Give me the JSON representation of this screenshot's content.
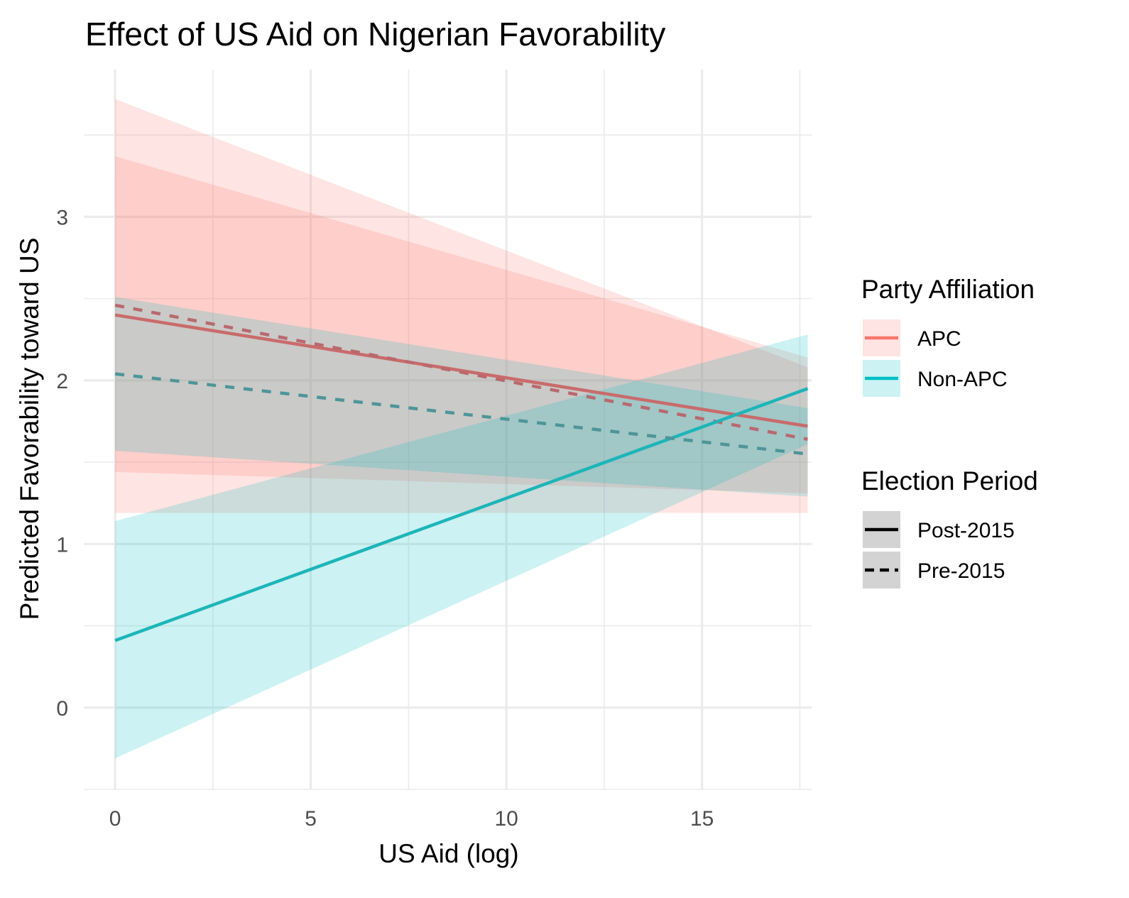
{
  "chart_data": {
    "type": "line",
    "title": "Effect of US Aid on Nigerian Favorability",
    "xlabel": "US Aid (log)",
    "ylabel": "Predicted Favorability toward US",
    "xlim": [
      -0.8,
      17.8
    ],
    "ylim": [
      -0.5,
      3.9
    ],
    "x_ticks": [
      0,
      5,
      10,
      15
    ],
    "y_ticks": [
      0,
      1,
      2,
      3
    ],
    "grid": true,
    "legend_position": "right",
    "series": [
      {
        "party": "APC",
        "period": "Post-2015",
        "x": [
          0,
          17.7
        ],
        "y": [
          2.4,
          1.72
        ],
        "ci_lower": [
          1.44,
          1.31
        ],
        "ci_upper": [
          3.37,
          2.14
        ]
      },
      {
        "party": "APC",
        "period": "Pre-2015",
        "x": [
          0,
          17.7
        ],
        "y": [
          2.46,
          1.64
        ],
        "ci_lower": [
          1.19,
          1.19
        ],
        "ci_upper": [
          3.72,
          2.08
        ]
      },
      {
        "party": "Non-APC",
        "period": "Post-2015",
        "x": [
          0,
          17.7
        ],
        "y": [
          0.41,
          1.95
        ],
        "ci_lower": [
          -0.31,
          1.61
        ],
        "ci_upper": [
          1.14,
          2.28
        ]
      },
      {
        "party": "Non-APC",
        "period": "Pre-2015",
        "x": [
          0,
          17.7
        ],
        "y": [
          2.04,
          1.55
        ],
        "ci_lower": [
          1.57,
          1.29
        ],
        "ci_upper": [
          2.51,
          1.83
        ]
      }
    ],
    "legend": {
      "party_title": "Party Affiliation",
      "parties": [
        "APC",
        "Non-APC"
      ],
      "period_title": "Election Period",
      "periods": [
        "Post-2015",
        "Pre-2015"
      ]
    },
    "colors": {
      "APC": "#F8766D",
      "Non-APC": "#00BFC4",
      "APC_line": "#C96B6B",
      "Non-APC_line": "#1DB5B8",
      "APC_pre_line": "#B8696E",
      "Non-APC_pre_line": "#4E9598",
      "grid": "#EBEBEB",
      "text": "#4D4D4D"
    }
  }
}
